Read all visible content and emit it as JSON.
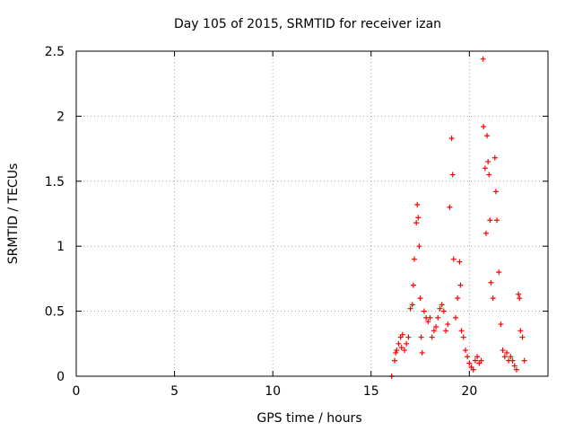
{
  "chart_data": {
    "type": "scatter",
    "title": "Day 105 of 2015, SRMTID for receiver izan",
    "xlabel": "GPS time / hours",
    "ylabel": "SRMTID / TECUs",
    "xlim": [
      0,
      24
    ],
    "ylim": [
      0,
      2.5
    ],
    "xticks": [
      0,
      5,
      10,
      15,
      20
    ],
    "xtick_labels": [
      "0",
      "5",
      "10",
      "15",
      "20"
    ],
    "yticks": [
      0,
      0.5,
      1,
      1.5,
      2,
      2.5
    ],
    "ytick_labels": [
      "0",
      "0.5",
      "1",
      "1.5",
      "2",
      "2.5"
    ],
    "grid": true,
    "marker": "+",
    "series": [
      {
        "name": "SRMTID",
        "color": "#ff0000",
        "points": [
          [
            16.05,
            0.0
          ],
          [
            16.2,
            0.12
          ],
          [
            16.25,
            0.18
          ],
          [
            16.3,
            0.2
          ],
          [
            16.4,
            0.25
          ],
          [
            16.5,
            0.3
          ],
          [
            16.55,
            0.22
          ],
          [
            16.6,
            0.32
          ],
          [
            16.7,
            0.2
          ],
          [
            16.8,
            0.25
          ],
          [
            16.9,
            0.3
          ],
          [
            17.0,
            0.52
          ],
          [
            17.1,
            0.55
          ],
          [
            17.15,
            0.7
          ],
          [
            17.2,
            0.9
          ],
          [
            17.3,
            1.18
          ],
          [
            17.35,
            1.32
          ],
          [
            17.4,
            1.22
          ],
          [
            17.45,
            1.0
          ],
          [
            17.5,
            0.6
          ],
          [
            17.55,
            0.3
          ],
          [
            17.6,
            0.18
          ],
          [
            17.7,
            0.5
          ],
          [
            17.8,
            0.45
          ],
          [
            17.9,
            0.42
          ],
          [
            18.0,
            0.45
          ],
          [
            18.1,
            0.3
          ],
          [
            18.2,
            0.35
          ],
          [
            18.3,
            0.38
          ],
          [
            18.4,
            0.45
          ],
          [
            18.5,
            0.52
          ],
          [
            18.6,
            0.55
          ],
          [
            18.7,
            0.5
          ],
          [
            18.8,
            0.35
          ],
          [
            18.9,
            0.4
          ],
          [
            19.0,
            1.3
          ],
          [
            19.1,
            1.83
          ],
          [
            19.15,
            1.55
          ],
          [
            19.2,
            0.9
          ],
          [
            19.3,
            0.45
          ],
          [
            19.4,
            0.6
          ],
          [
            19.5,
            0.88
          ],
          [
            19.55,
            0.7
          ],
          [
            19.6,
            0.35
          ],
          [
            19.7,
            0.3
          ],
          [
            19.8,
            0.2
          ],
          [
            19.9,
            0.15
          ],
          [
            20.0,
            0.1
          ],
          [
            20.1,
            0.07
          ],
          [
            20.2,
            0.05
          ],
          [
            20.3,
            0.12
          ],
          [
            20.4,
            0.15
          ],
          [
            20.5,
            0.1
          ],
          [
            20.6,
            0.12
          ],
          [
            20.7,
            2.44
          ],
          [
            20.72,
            1.92
          ],
          [
            20.8,
            1.6
          ],
          [
            20.85,
            1.1
          ],
          [
            20.9,
            1.85
          ],
          [
            20.95,
            1.65
          ],
          [
            21.0,
            1.55
          ],
          [
            21.05,
            1.2
          ],
          [
            21.1,
            0.72
          ],
          [
            21.2,
            0.6
          ],
          [
            21.3,
            1.68
          ],
          [
            21.35,
            1.42
          ],
          [
            21.4,
            1.2
          ],
          [
            21.5,
            0.8
          ],
          [
            21.6,
            0.4
          ],
          [
            21.7,
            0.2
          ],
          [
            21.8,
            0.15
          ],
          [
            21.9,
            0.18
          ],
          [
            22.0,
            0.12
          ],
          [
            22.1,
            0.15
          ],
          [
            22.2,
            0.12
          ],
          [
            22.3,
            0.08
          ],
          [
            22.4,
            0.05
          ],
          [
            22.5,
            0.63
          ],
          [
            22.55,
            0.6
          ],
          [
            22.6,
            0.35
          ],
          [
            22.7,
            0.3
          ],
          [
            22.8,
            0.12
          ]
        ]
      }
    ]
  }
}
